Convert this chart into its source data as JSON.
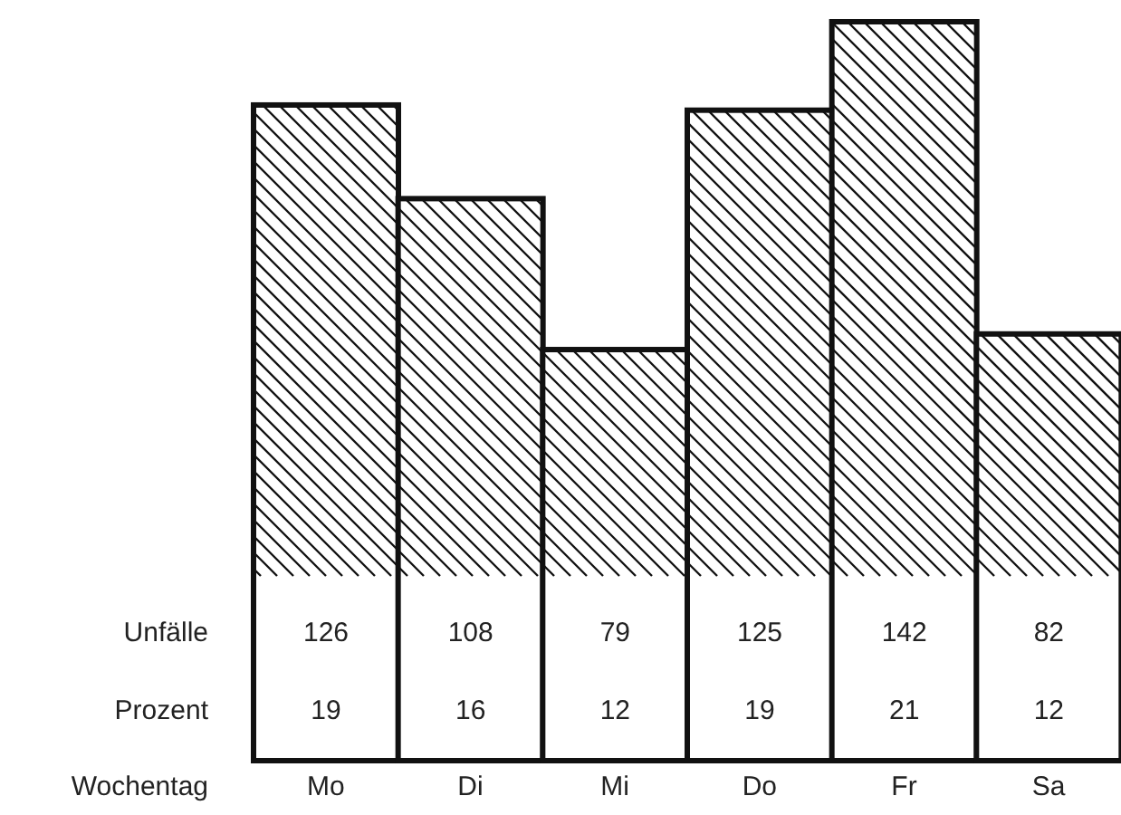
{
  "chart_data": {
    "type": "bar",
    "categories": [
      "Mo",
      "Di",
      "Mi",
      "Do",
      "Fr",
      "Sa"
    ],
    "series": [
      {
        "name": "Unfälle",
        "color": "#111111",
        "values": [
          126,
          108,
          79,
          125,
          142,
          82
        ]
      }
    ],
    "data_labels": true,
    "xlabel": "Wochentag",
    "annotations": [
      "Prozent",
      "19",
      "16",
      "12",
      "19",
      "21",
      "12"
    ]
  }
}
